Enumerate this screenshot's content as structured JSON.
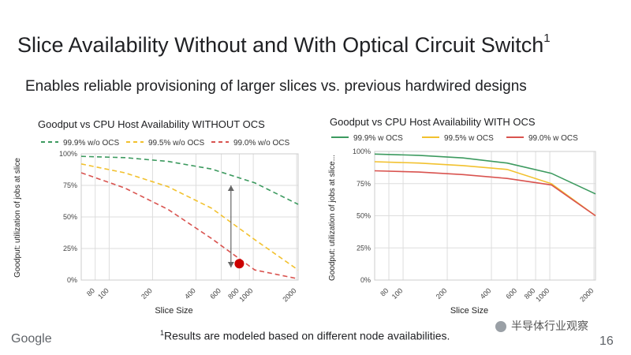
{
  "slide": {
    "title": "Slice Availability Without and With Optical Circuit Switch",
    "title_sup": "1",
    "subtitle": "Enables reliable provisioning of larger slices vs. previous hardwired designs",
    "footnote_sup": "1",
    "footnote": "Results are modeled based on different node availabilities.",
    "logo": "Google",
    "page_number": "16",
    "watermark": "半导体行业观察"
  },
  "chart_data": [
    {
      "type": "line",
      "title": "Goodput vs CPU Host Availability WITHOUT OCS",
      "xlabel": "Slice Size",
      "ylabel": "Goodput: utilization of jobs at slice",
      "x_scale": "log",
      "x_ticks": [
        "80",
        "100",
        "200",
        "400",
        "600",
        "800",
        "1000",
        "2000"
      ],
      "y_ticks": [
        "0%",
        "25%",
        "50%",
        "75%",
        "100%"
      ],
      "ylim": [
        0,
        100
      ],
      "xlim": [
        64,
        2048
      ],
      "grid": true,
      "legend_position": "top",
      "line_style": "dashed",
      "series": [
        {
          "name": "99.9% w/o OCS",
          "color": "#3c9a5f",
          "x": [
            64,
            128,
            256,
            512,
            1024,
            2048
          ],
          "y": [
            98,
            97,
            94,
            88,
            77,
            60
          ]
        },
        {
          "name": "99.5% w/o OCS",
          "color": "#f2c12e",
          "x": [
            64,
            128,
            256,
            512,
            1024,
            2048
          ],
          "y": [
            92,
            85,
            74,
            57,
            32,
            8
          ]
        },
        {
          "name": "99.0% w/o OCS",
          "color": "#d9534f",
          "x": [
            64,
            128,
            256,
            512,
            1024,
            2048
          ],
          "y": [
            85,
            73,
            56,
            33,
            8,
            1
          ]
        }
      ],
      "annotations": [
        {
          "type": "double-arrow",
          "x": 700,
          "y_from": 75,
          "y_to": 10
        },
        {
          "type": "marker",
          "x": 800,
          "y": 13,
          "color": "#cc0000"
        }
      ]
    },
    {
      "type": "line",
      "title": "Goodput vs CPU Host Availability WITH OCS",
      "xlabel": "Slice Size",
      "ylabel": "Goodput: utilization of jobs at slice...",
      "x_scale": "log",
      "x_ticks": [
        "80",
        "100",
        "200",
        "400",
        "600",
        "800",
        "1000",
        "2000"
      ],
      "y_ticks": [
        "0%",
        "25%",
        "50%",
        "75%",
        "100%"
      ],
      "ylim": [
        0,
        100
      ],
      "xlim": [
        64,
        2048
      ],
      "grid": true,
      "legend_position": "top",
      "line_style": "solid",
      "series": [
        {
          "name": "99.9% w OCS",
          "color": "#3c9a5f",
          "x": [
            64,
            128,
            256,
            512,
            1024,
            2048
          ],
          "y": [
            98,
            97,
            95,
            91,
            83,
            67
          ]
        },
        {
          "name": "99.5% w OCS",
          "color": "#f2c12e",
          "x": [
            64,
            128,
            256,
            512,
            1024,
            2048
          ],
          "y": [
            92,
            91,
            89,
            86,
            75,
            50
          ]
        },
        {
          "name": "99.0% w OCS",
          "color": "#d9534f",
          "x": [
            64,
            128,
            256,
            512,
            1024,
            2048
          ],
          "y": [
            85,
            84,
            82,
            79,
            74,
            50
          ]
        }
      ]
    }
  ]
}
